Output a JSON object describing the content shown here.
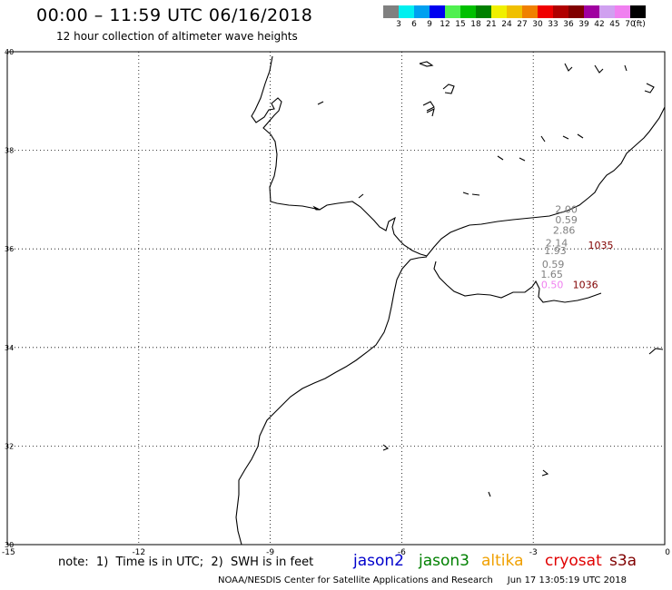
{
  "header": {
    "title": "00:00 – 11:59 UTC 06/16/2018",
    "subtitle": "12 hour collection of altimeter wave heights"
  },
  "legend": {
    "unit": "(ft)",
    "items": [
      {
        "label": "3",
        "color": "#808080"
      },
      {
        "label": "6",
        "color": "#00f0f0"
      },
      {
        "label": "9",
        "color": "#00a0f0"
      },
      {
        "label": "12",
        "color": "#0000f0"
      },
      {
        "label": "15",
        "color": "#50f050"
      },
      {
        "label": "18",
        "color": "#00c000"
      },
      {
        "label": "21",
        "color": "#008000"
      },
      {
        "label": "24",
        "color": "#f0f000"
      },
      {
        "label": "27",
        "color": "#f0c000"
      },
      {
        "label": "30",
        "color": "#f08000"
      },
      {
        "label": "33",
        "color": "#f00000"
      },
      {
        "label": "36",
        "color": "#b00000"
      },
      {
        "label": "39",
        "color": "#800000"
      },
      {
        "label": "42",
        "color": "#a000a0"
      },
      {
        "label": "45",
        "color": "#d0a0f0"
      },
      {
        "label": "70",
        "color": "#f080f0"
      },
      {
        "label": "",
        "color": "#000000"
      }
    ]
  },
  "axes": {
    "lon_ticks": [
      "-15",
      "-12",
      "-9",
      "-6",
      "-3",
      "0"
    ],
    "lat_ticks": [
      "30",
      "32",
      "34",
      "36",
      "38",
      "40"
    ]
  },
  "observations": [
    {
      "text": "2.00",
      "lon": -2.5,
      "lat": 36.73,
      "color": "#808080"
    },
    {
      "text": "0.59",
      "lon": -2.5,
      "lat": 36.52,
      "color": "#808080"
    },
    {
      "text": "2.86",
      "lon": -2.55,
      "lat": 36.31,
      "color": "#808080"
    },
    {
      "text": "2.14",
      "lon": -2.72,
      "lat": 36.05,
      "color": "#808080"
    },
    {
      "text": "1035",
      "lon": -1.75,
      "lat": 36.0,
      "color": "#800000"
    },
    {
      "text": "1.93",
      "lon": -2.75,
      "lat": 35.89,
      "color": "#808080"
    },
    {
      "text": "0.59",
      "lon": -2.8,
      "lat": 35.62,
      "color": "#808080"
    },
    {
      "text": "1.65",
      "lon": -2.83,
      "lat": 35.41,
      "color": "#808080"
    },
    {
      "text": "0.50",
      "lon": -2.82,
      "lat": 35.2,
      "color": "#f080f0"
    },
    {
      "text": "1036",
      "lon": -2.1,
      "lat": 35.2,
      "color": "#800000"
    }
  ],
  "note": "note:  1)  Time is in UTC;  2)  SWH is in feet",
  "satellites": [
    {
      "name": "jason2",
      "color": "#0000cc"
    },
    {
      "name": "jason3",
      "color": "#008000"
    },
    {
      "name": "altika",
      "color": "#f0a000"
    },
    {
      "name": "cryosat",
      "color": "#e00000"
    },
    {
      "name": "s3a",
      "color": "#800000"
    }
  ],
  "footer": {
    "credit": "NOAA/NESDIS Center for Satellite Applications and Research",
    "timestamp": "Jun 17 13:05:19 UTC 2018"
  }
}
